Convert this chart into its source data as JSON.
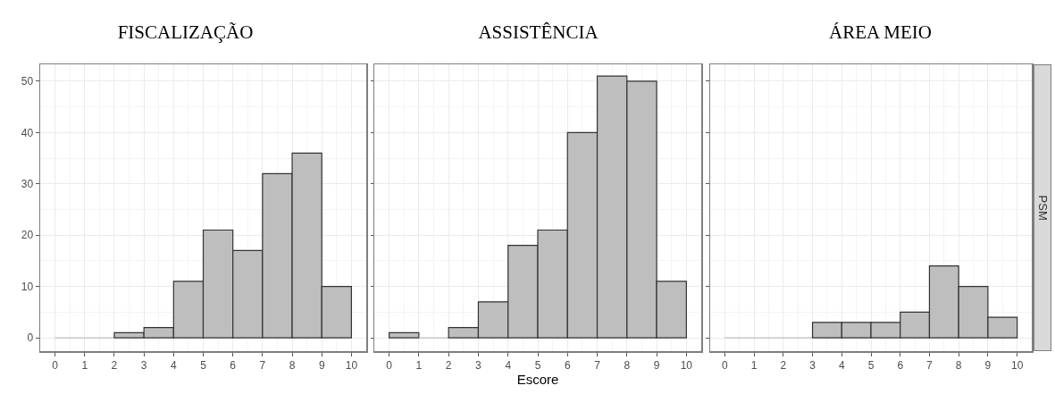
{
  "chart_data": [
    {
      "type": "histogram",
      "title": "FISCALIZAÇÃO",
      "bins": [
        0,
        1,
        2,
        3,
        4,
        5,
        6,
        7,
        8,
        9,
        10
      ],
      "values": [
        0,
        0,
        1,
        2,
        11,
        21,
        17,
        32,
        36,
        10
      ],
      "color": "#bebebe",
      "xlim": [
        -0.5,
        10.5
      ],
      "ylim": [
        -2.6,
        53.3
      ],
      "xticks": [
        0,
        1,
        2,
        3,
        4,
        5,
        6,
        7,
        8,
        9,
        10
      ],
      "yticks": [
        0,
        10,
        20,
        30,
        40,
        50
      ],
      "grid": true
    },
    {
      "type": "histogram",
      "title": "ASSISTÊNCIA",
      "xlabel": "Escore",
      "bins": [
        0,
        1,
        2,
        3,
        4,
        5,
        6,
        7,
        8,
        9,
        10
      ],
      "values": [
        1,
        0,
        2,
        7,
        18,
        21,
        40,
        51,
        50,
        11
      ],
      "color": "#bebebe",
      "xlim": [
        -0.5,
        10.5
      ],
      "ylim": [
        -2.6,
        53.3
      ],
      "xticks": [
        0,
        1,
        2,
        3,
        4,
        5,
        6,
        7,
        8,
        9,
        10
      ],
      "yticks": [
        0,
        10,
        20,
        30,
        40,
        50
      ],
      "grid": true,
      "tick_labels": "x"
    },
    {
      "type": "histogram",
      "title": "ÁREA MEIO",
      "annotations": [
        "PSM"
      ],
      "bins": [
        0,
        1,
        2,
        3,
        4,
        5,
        6,
        7,
        8,
        9,
        10
      ],
      "values": [
        0,
        0,
        0,
        3,
        3,
        3,
        5,
        14,
        10,
        4
      ],
      "color": "#bebebe",
      "xlim": [
        -0.5,
        10.5
      ],
      "ylim": [
        -2.6,
        53.3
      ],
      "xticks": [
        0,
        1,
        2,
        3,
        4,
        5,
        6,
        7,
        8,
        9,
        10
      ],
      "yticks": [
        0,
        10,
        20,
        30,
        40,
        50
      ],
      "grid": true,
      "tick_labels": "x"
    }
  ]
}
